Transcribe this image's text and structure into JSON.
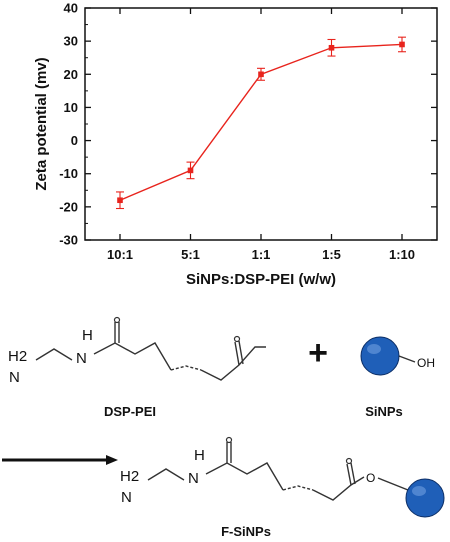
{
  "chart_data": {
    "type": "line",
    "title": "",
    "xlabel": "SiNPs:DSP-PEI (w/w)",
    "ylabel": "Zeta potential (mv)",
    "categories": [
      "10:1",
      "5:1",
      "1:1",
      "1:5",
      "1:10"
    ],
    "ylim": [
      -30,
      40
    ],
    "yticks": [
      -30,
      -20,
      -10,
      0,
      10,
      20,
      30,
      40
    ],
    "series": [
      {
        "values": [
          -18,
          -9,
          20,
          28,
          29
        ],
        "errors": [
          2.5,
          2.5,
          1.8,
          2.5,
          2.2
        ],
        "color": "#e8241d"
      }
    ],
    "grid": false,
    "legend": "none"
  },
  "scheme": {
    "molecule1_label": "DSP-PEI",
    "particle_label": "SiNPs",
    "product_label": "F-SiNPs",
    "plus_sign": "+",
    "atoms": {
      "nh_h": "H",
      "nh_n": "N",
      "amine_h2": "H2",
      "amine_n": "N",
      "oh": "OH",
      "ester_o": "O"
    },
    "particle_color": "#1f5fb8"
  }
}
